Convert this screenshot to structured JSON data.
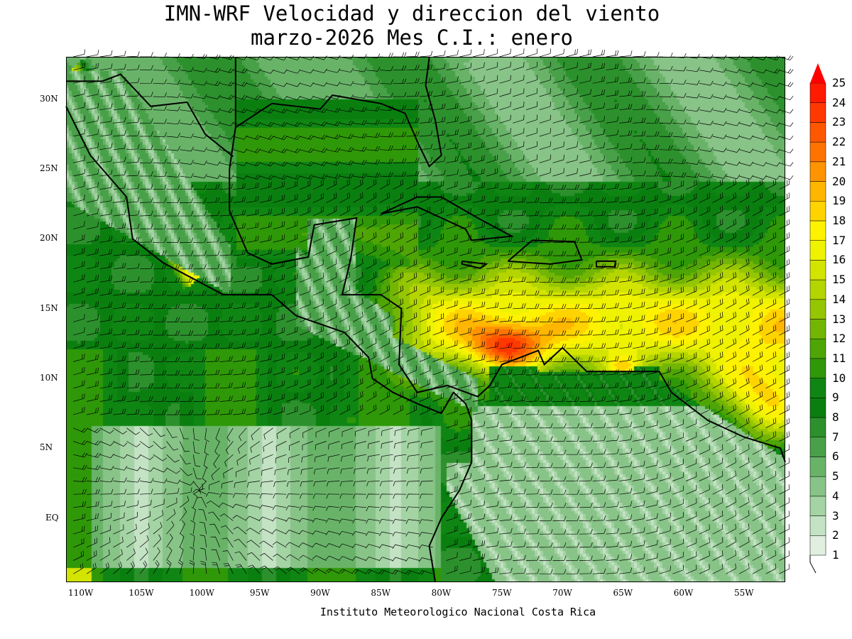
{
  "title": {
    "line1": "IMN-WRF Velocidad y direccion del viento",
    "line2": "marzo-2026 Mes C.I.: enero"
  },
  "credit": "Instituto Meteorologico Nacional Costa Rica",
  "axes": {
    "x_ticks": [
      "110W",
      "105W",
      "100W",
      "95W",
      "90W",
      "85W",
      "80W",
      "75W",
      "70W",
      "65W",
      "60W",
      "55W"
    ],
    "x_values": [
      -110,
      -105,
      -100,
      -95,
      -90,
      -85,
      -80,
      -75,
      -70,
      -65,
      -60,
      -55
    ],
    "y_ticks": [
      "30N",
      "25N",
      "20N",
      "15N",
      "10N",
      "5N",
      "EQ"
    ],
    "y_values": [
      30,
      25,
      20,
      15,
      10,
      5,
      0
    ],
    "lon_range": [
      -111,
      -51.6
    ],
    "lat_range": [
      -4.6,
      33.05
    ]
  },
  "colorbar": {
    "labels": [
      "1",
      "2",
      "3",
      "4",
      "5",
      "6",
      "7",
      "8",
      "9",
      "10",
      "11",
      "12",
      "13",
      "14",
      "15",
      "16",
      "17",
      "18",
      "19",
      "20",
      "21",
      "22",
      "23",
      "24",
      "25"
    ],
    "colors": [
      "#e1efe1",
      "#c4e2c4",
      "#a4d3a4",
      "#88c388",
      "#69b369",
      "#48a048",
      "#2c912c",
      "#0a7f10",
      "#0f8613",
      "#2f9808",
      "#4ea505",
      "#73b505",
      "#95c603",
      "#b4d500",
      "#d2e400",
      "#eff200",
      "#fff200",
      "#ffd300",
      "#ffb600",
      "#ff9400",
      "#ff7400",
      "#ff5700",
      "#ff3800",
      "#ff1a00"
    ],
    "extend_color": "#ff0000"
  }
}
